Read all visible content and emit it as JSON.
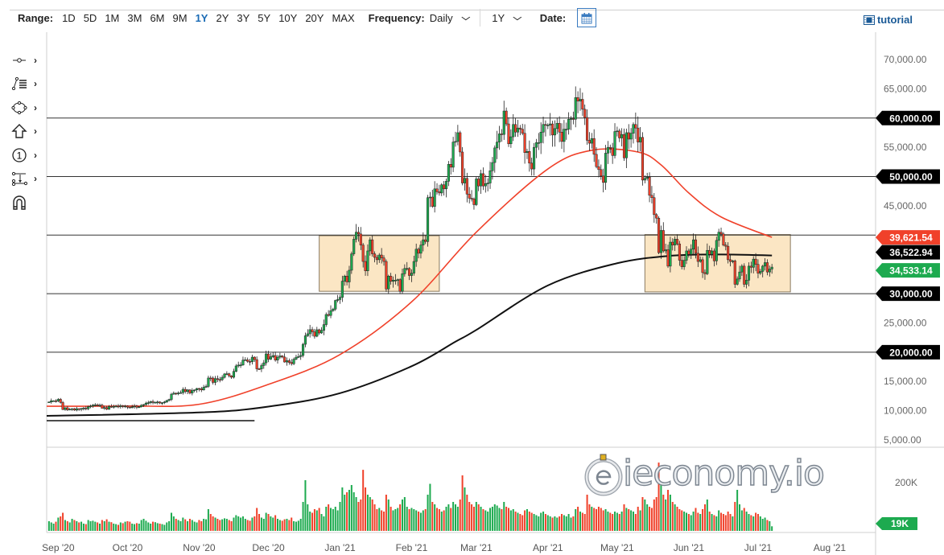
{
  "header": {
    "range_label": "Range:",
    "ranges": [
      "1D",
      "5D",
      "1M",
      "3M",
      "6M",
      "9M",
      "1Y",
      "2Y",
      "3Y",
      "5Y",
      "10Y",
      "20Y",
      "MAX"
    ],
    "active_range": "1Y",
    "frequency_label": "Frequency:",
    "frequency_value": "Daily",
    "period_value": "1Y",
    "date_label": "Date:",
    "tutorial_label": "tutorial"
  },
  "toolbar": {
    "tools": [
      "line-tool",
      "fibonacci-tool",
      "shape-tool",
      "arrow-tool",
      "number-marker-tool",
      "measure-tool",
      "magnet-tool"
    ]
  },
  "watermark": "ieconomy.io",
  "colors": {
    "up": "#1daa4f",
    "down": "#f0412a",
    "ma50": "#f0412a",
    "ma200": "#111111",
    "box_fill": "#fbe6c4",
    "box_stroke": "#8a7a60",
    "accent": "#1a6bb5"
  },
  "chart_data": {
    "type": "candlestick",
    "ylim": [
      5000,
      70000
    ],
    "y_tick_labels": [
      "70,000.00",
      "65,000.00",
      "55,000.00",
      "45,000.00",
      "25,000.00",
      "15,000.00",
      "10,000.00",
      "5,000.00"
    ],
    "y_tick_values": [
      70000,
      65000,
      55000,
      45000,
      25000,
      15000,
      10000,
      5000
    ],
    "x_ticks": [
      {
        "label": "Sep '20",
        "date": "2020-09-01"
      },
      {
        "label": "Oct '20",
        "date": "2020-10-01"
      },
      {
        "label": "Nov '20",
        "date": "2020-11-01"
      },
      {
        "label": "Dec '20",
        "date": "2020-12-01"
      },
      {
        "label": "Jan '21",
        "date": "2021-01-01"
      },
      {
        "label": "Feb '21",
        "date": "2021-02-01"
      },
      {
        "label": "Mar '21",
        "date": "2021-03-01"
      },
      {
        "label": "Apr '21",
        "date": "2021-04-01"
      },
      {
        "label": "May '21",
        "date": "2021-05-01"
      },
      {
        "label": "Jun '21",
        "date": "2021-06-01"
      },
      {
        "label": "Jul '21",
        "date": "2021-07-01"
      },
      {
        "label": "Aug '21",
        "date": "2021-08-01"
      }
    ],
    "first_date": "2020-08-28",
    "closes": [
      11500,
      11700,
      11700,
      11650,
      11950,
      11400,
      10200,
      10500,
      10150,
      10250,
      10350,
      10100,
      10350,
      10250,
      10370,
      10450,
      10330,
      10680,
      10790,
      10970,
      11000,
      10920,
      10950,
      10420,
      10540,
      10240,
      10740,
      10690,
      10730,
      10780,
      10700,
      10850,
      10780,
      10800,
      10600,
      10550,
      10670,
      10790,
      10600,
      10670,
      10930,
      11060,
      11300,
      11380,
      11550,
      11420,
      11430,
      11500,
      11320,
      11370,
      11500,
      11750,
      11920,
      12820,
      12990,
      12930,
      13030,
      13080,
      13650,
      13270,
      13560,
      13030,
      13450,
      13560,
      13800,
      13760,
      13550,
      14020,
      14150,
      15590,
      15580,
      14830,
      15480,
      15330,
      15300,
      15700,
      16280,
      16320,
      15960,
      15720,
      16720,
      17650,
      17800,
      17820,
      18640,
      18700,
      18420,
      18370,
      19150,
      18730,
      17150,
      17140,
      17720,
      18180,
      19700,
      18800,
      19220,
      19430,
      18650,
      19150,
      19360,
      19170,
      18320,
      18550,
      18250,
      18030,
      18800,
      19140,
      19250,
      19440,
      21350,
      22800,
      23140,
      23850,
      23480,
      22720,
      23830,
      23280,
      23730,
      24710,
      26440,
      26280,
      27080,
      27360,
      28840,
      29000,
      29370,
      32130,
      33000,
      32000,
      34000,
      36800,
      39300,
      40500,
      40200,
      38300,
      35500,
      33900,
      37300,
      39200,
      36800,
      36200,
      35800,
      36600,
      36100,
      35500,
      30800,
      33000,
      32100,
      32300,
      32300,
      32400,
      30400,
      33400,
      34300,
      34300,
      33100,
      33500,
      35500,
      37600,
      36900,
      38300,
      39200,
      38900,
      46400,
      46500,
      44900,
      47900,
      47400,
      47200,
      48600,
      47900,
      49200,
      52100,
      51600,
      55900,
      56000,
      57500,
      54200,
      48900,
      49700,
      47000,
      46300,
      46200,
      45200,
      49600,
      48400,
      50500,
      48400,
      48800,
      48900,
      51000,
      52400,
      54900,
      55900,
      57300,
      57200,
      61200,
      59000,
      55600,
      56800,
      58900,
      57600,
      58300,
      58100,
      57400,
      54100,
      54300,
      52300,
      51300,
      55000,
      55800,
      55800,
      57600,
      58900,
      58800,
      58800,
      59000,
      57100,
      58200,
      59100,
      57600,
      56000,
      58100,
      58100,
      59800,
      59900,
      59800,
      63500,
      62900,
      63200,
      61500,
      60100,
      56200,
      55700,
      56500,
      53800,
      51700,
      51200,
      50100,
      49000,
      54000,
      55000,
      54900,
      53600,
      57700,
      57800,
      56600,
      57200,
      53200,
      57500,
      56400,
      57400,
      58900,
      58300,
      55900,
      56700,
      49400,
      49700,
      49900,
      46800,
      46400,
      43500,
      42900,
      37000,
      40800,
      37300,
      37500,
      34700,
      38800,
      38300,
      39300,
      38500,
      35700,
      34600,
      35700,
      37300,
      36700,
      37600,
      39200,
      36900,
      35500,
      35800,
      33600,
      33400,
      37400,
      36700,
      37300,
      35600,
      39100,
      40500,
      40200,
      38300,
      38100,
      35800,
      35500,
      35600,
      31600,
      32500,
      33700,
      34700,
      31600,
      32300,
      34700,
      34500,
      35900,
      35000,
      33500,
      33800,
      34700,
      35300,
      33700,
      34200,
      34533.14
    ],
    "volumes_k": [
      40,
      35,
      30,
      38,
      55,
      60,
      75,
      45,
      40,
      35,
      50,
      45,
      40,
      35,
      38,
      30,
      28,
      45,
      40,
      42,
      38,
      35,
      30,
      45,
      40,
      48,
      38,
      36,
      30,
      28,
      25,
      35,
      32,
      38,
      40,
      38,
      30,
      28,
      32,
      30,
      45,
      50,
      42,
      35,
      30,
      38,
      36,
      32,
      30,
      28,
      25,
      35,
      40,
      75,
      60,
      50,
      45,
      40,
      55,
      48,
      40,
      50,
      45,
      38,
      35,
      45,
      40,
      50,
      48,
      90,
      70,
      60,
      55,
      50,
      45,
      48,
      52,
      50,
      45,
      40,
      55,
      65,
      60,
      55,
      60,
      50,
      45,
      42,
      55,
      60,
      95,
      70,
      55,
      50,
      75,
      70,
      60,
      55,
      65,
      50,
      45,
      42,
      48,
      50,
      45,
      55,
      40,
      38,
      42,
      50,
      120,
      210,
      110,
      80,
      75,
      90,
      85,
      95,
      70,
      60,
      100,
      110,
      95,
      90,
      100,
      85,
      120,
      180,
      150,
      160,
      170,
      190,
      160,
      140,
      120,
      130,
      253,
      180,
      150,
      140,
      130,
      110,
      90,
      95,
      85,
      80,
      150,
      130,
      100,
      85,
      90,
      95,
      110,
      130,
      140,
      100,
      90,
      95,
      90,
      85,
      80,
      75,
      85,
      90,
      150,
      195,
      120,
      110,
      95,
      90,
      80,
      85,
      100,
      110,
      95,
      120,
      110,
      100,
      130,
      230,
      180,
      150,
      120,
      110,
      100,
      120,
      110,
      100,
      90,
      85,
      80,
      95,
      100,
      110,
      105,
      95,
      90,
      120,
      100,
      95,
      85,
      90,
      80,
      75,
      70,
      65,
      85,
      90,
      80,
      75,
      70,
      65,
      60,
      75,
      80,
      70,
      65,
      60,
      55,
      60,
      55,
      60,
      70,
      65,
      60,
      70,
      55,
      60,
      90,
      100,
      80,
      75,
      70,
      150,
      110,
      100,
      95,
      90,
      100,
      95,
      85,
      90,
      80,
      75,
      70,
      80,
      75,
      70,
      80,
      110,
      95,
      90,
      85,
      80,
      70,
      100,
      85,
      140,
      130,
      110,
      100,
      95,
      130,
      140,
      283,
      200,
      150,
      130,
      170,
      150,
      120,
      110,
      100,
      90,
      85,
      80,
      75,
      70,
      65,
      80,
      95,
      75,
      70,
      90,
      110,
      130,
      80,
      70,
      65,
      60,
      85,
      75,
      70,
      65,
      80,
      70,
      60,
      120,
      170,
      110,
      85,
      95,
      80,
      70,
      65,
      60,
      75,
      70,
      60,
      50,
      55,
      45,
      40,
      19
    ],
    "volume_axis_label": "200K",
    "volume_axis_value_k": 200,
    "volume_last_label": "19K",
    "ma50": [
      [
        "2020-08-27",
        10770
      ],
      [
        "2020-10-01",
        10800
      ],
      [
        "2020-11-01",
        11100
      ],
      [
        "2020-12-01",
        14500
      ],
      [
        "2021-01-01",
        19600
      ],
      [
        "2021-02-01",
        28600
      ],
      [
        "2021-03-01",
        40500
      ],
      [
        "2021-04-01",
        51300
      ],
      [
        "2021-04-20",
        54500
      ],
      [
        "2021-05-10",
        54200
      ],
      [
        "2021-05-20",
        52000
      ],
      [
        "2021-06-01",
        47200
      ],
      [
        "2021-06-15",
        43100
      ],
      [
        "2021-07-07",
        39621.54
      ]
    ],
    "ma200": [
      [
        "2020-08-27",
        9120
      ],
      [
        "2020-11-01",
        9700
      ],
      [
        "2020-12-01",
        10700
      ],
      [
        "2021-01-01",
        13000
      ],
      [
        "2021-02-01",
        17600
      ],
      [
        "2021-02-20",
        21800
      ],
      [
        "2021-03-01",
        23800
      ],
      [
        "2021-04-01",
        31400
      ],
      [
        "2021-05-01",
        35200
      ],
      [
        "2021-05-25",
        36500
      ],
      [
        "2021-06-15",
        36700
      ],
      [
        "2021-07-07",
        36522.94
      ]
    ],
    "horizontal_lines": [
      60000,
      50000,
      40000,
      30000,
      20000
    ],
    "trendline": {
      "from": [
        "2020-08-27",
        8300
      ],
      "to": [
        "2020-11-25",
        8300
      ]
    },
    "boxes": [
      {
        "from": "2020-12-23",
        "to": "2021-02-13",
        "top": 39900,
        "bottom": 30400
      },
      {
        "from": "2021-05-13",
        "to": "2021-07-15",
        "top": 40100,
        "bottom": 30300
      }
    ],
    "price_labels": [
      {
        "value": 60000,
        "text": "60,000.00",
        "kind": "level"
      },
      {
        "value": 50000,
        "text": "50,000.00",
        "kind": "level"
      },
      {
        "value": 39621.54,
        "text": "39,621.54",
        "kind": "ma50"
      },
      {
        "value": 36522.94,
        "text": "36,522.94",
        "kind": "ma200"
      },
      {
        "value": 34533.14,
        "text": "34,533.14",
        "kind": "last"
      },
      {
        "value": 30000,
        "text": "30,000.00",
        "kind": "level"
      },
      {
        "value": 20000,
        "text": "20,000.00",
        "kind": "level"
      }
    ]
  }
}
